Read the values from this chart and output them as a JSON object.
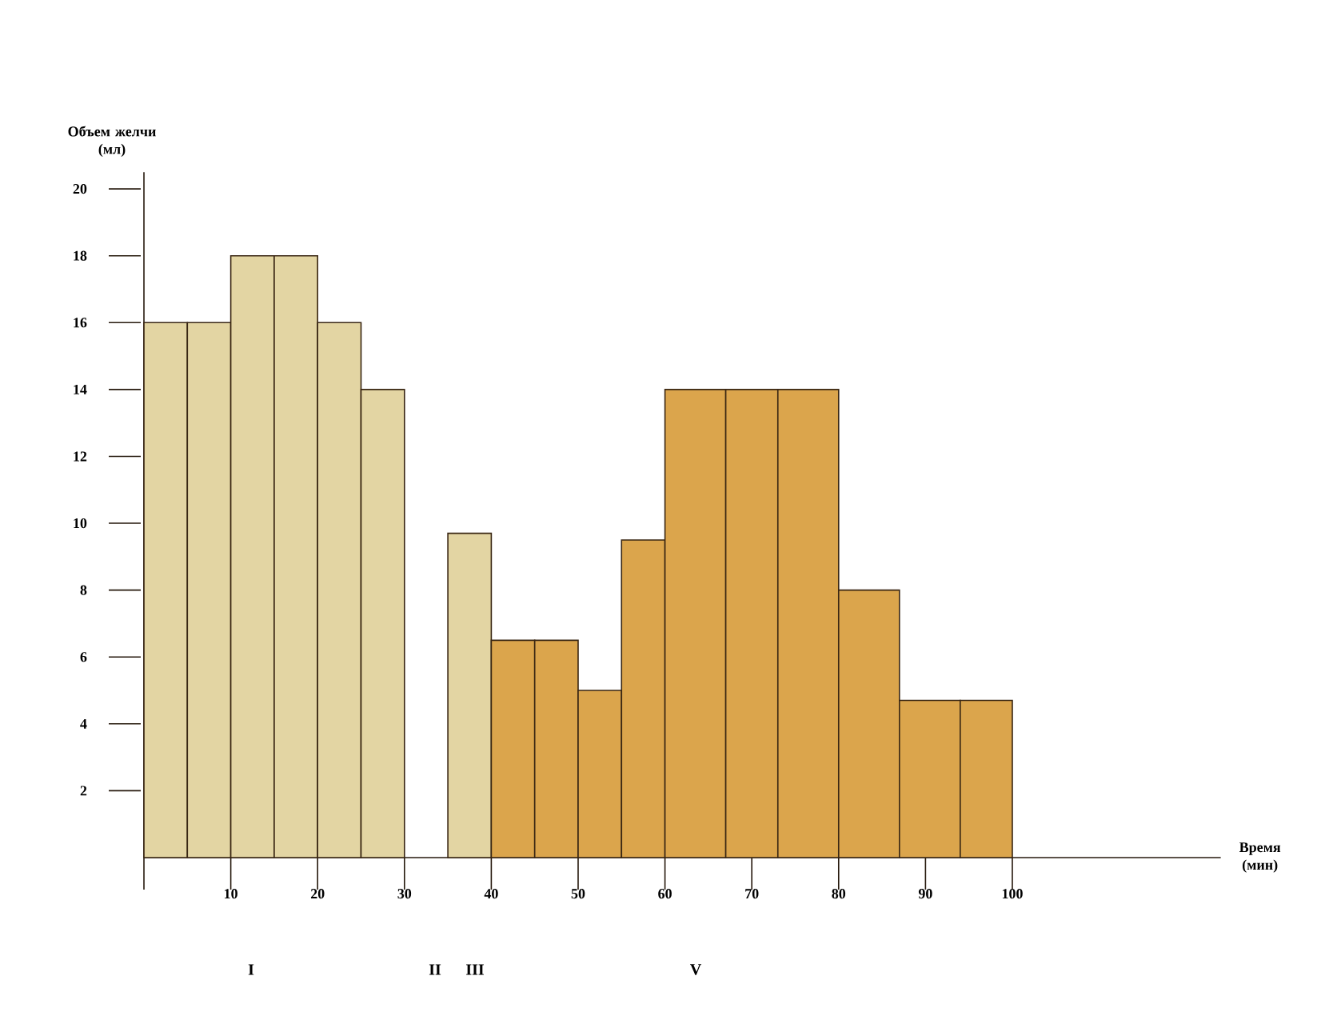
{
  "chart_data": {
    "type": "histogram",
    "xlabel": "Время\n(мин)",
    "ylabel": "Объем желчи\n(мл)",
    "bins": [
      0,
      5,
      10,
      15,
      20,
      25,
      30,
      35,
      40,
      45,
      50,
      55,
      60,
      67,
      73,
      80,
      87,
      94,
      100
    ],
    "values": [
      16,
      16,
      18,
      18,
      16,
      14,
      null,
      9.7,
      6.5,
      6.5,
      5,
      9.5,
      14,
      14,
      14,
      8,
      4.7,
      4.7
    ],
    "colors": [
      "#e3d5a3",
      "#e3d5a3",
      "#e3d5a3",
      "#e3d5a3",
      "#e3d5a3",
      "#e3d5a3",
      null,
      "#e3d5a3",
      "#dba54c",
      "#dba54c",
      "#dba54c",
      "#dba54c",
      "#dba54c",
      "#dba54c",
      "#dba54c",
      "#dba54c",
      "#dba54c",
      "#dba54c"
    ],
    "xlim": [
      0,
      124
    ],
    "ylim": [
      0,
      20.5
    ],
    "xticks": [
      {
        "value": 0,
        "label": null
      },
      10,
      20,
      30,
      40,
      50,
      60,
      70,
      80,
      90,
      100
    ],
    "yticks": [
      2,
      4,
      6,
      8,
      10,
      12,
      14,
      16,
      18,
      20
    ],
    "annotations": [
      "I",
      "II",
      "III",
      "V"
    ]
  }
}
